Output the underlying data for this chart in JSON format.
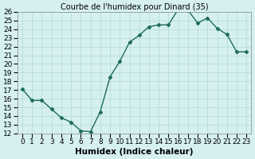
{
  "x": [
    0,
    1,
    2,
    3,
    4,
    5,
    6,
    7,
    8,
    9,
    10,
    11,
    12,
    13,
    14,
    15,
    16,
    17,
    18,
    19,
    20,
    21,
    22,
    23
  ],
  "y": [
    17.1,
    15.8,
    15.8,
    14.8,
    13.8,
    13.3,
    12.3,
    12.2,
    14.5,
    18.5,
    20.3,
    22.5,
    23.3,
    24.3,
    24.5,
    24.5,
    26.3,
    26.2,
    24.7,
    25.3,
    24.1,
    23.4,
    21.4,
    21.4
  ],
  "line_color": "#1a6b5a",
  "marker_color": "#1a6b5a",
  "bg_color": "#d6f0f0",
  "grid_color": "#b0d8d8",
  "title": "Courbe de l'humidex pour Dinard (35)",
  "xlabel": "Humidex (Indice chaleur)",
  "ylabel": "",
  "xlim": [
    -0.5,
    23.5
  ],
  "ylim": [
    12,
    26
  ],
  "yticks": [
    12,
    13,
    14,
    15,
    16,
    17,
    18,
    19,
    20,
    21,
    22,
    23,
    24,
    25,
    26
  ],
  "xticks": [
    0,
    1,
    2,
    3,
    4,
    5,
    6,
    7,
    8,
    9,
    10,
    11,
    12,
    13,
    14,
    15,
    16,
    17,
    18,
    19,
    20,
    21,
    22,
    23
  ],
  "xtick_labels": [
    "0",
    "1",
    "2",
    "3",
    "4",
    "5",
    "6",
    "7",
    "8",
    "9",
    "10",
    "11",
    "12",
    "13",
    "14",
    "15",
    "16",
    "17",
    "18",
    "19",
    "20",
    "21",
    "22",
    "23"
  ],
  "title_fontsize": 7,
  "label_fontsize": 7.5,
  "tick_fontsize": 6.5
}
